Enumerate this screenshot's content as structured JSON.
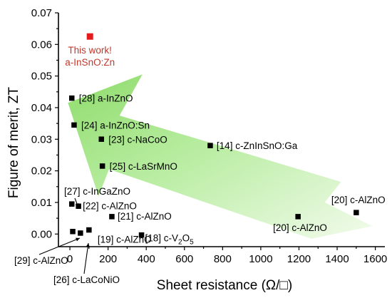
{
  "chart_data": {
    "type": "scatter",
    "xlabel": "Sheet resistance (Ω/□)",
    "ylabel": "Figure of merit, ZT",
    "xlim": [
      -60,
      1650
    ],
    "ylim": [
      -0.004,
      0.07
    ],
    "xticks": [
      0,
      200,
      400,
      600,
      800,
      1000,
      1200,
      1400,
      1600
    ],
    "xtick_labels": [
      "0",
      "200",
      "400",
      "600",
      "800",
      "1000",
      "1200",
      "1400",
      "1600"
    ],
    "yticks": [
      0.0,
      0.01,
      0.02,
      0.03,
      0.04,
      0.05,
      0.06,
      0.07
    ],
    "ytick_labels": [
      "0.00",
      "0.01",
      "0.02",
      "0.03",
      "0.04",
      "0.05",
      "0.06",
      "0.07"
    ],
    "grid": false,
    "highlight_color": "#e41a1c",
    "point_color": "#000000",
    "arrow_color": "#a8e58c",
    "annotation": "This work!\na-InSnO:Zn",
    "points": [
      {
        "x": 105,
        "y": 0.0625,
        "label": "This work!\na-InSnO:Zn",
        "highlight": true
      },
      {
        "x": 10,
        "y": 0.043,
        "label": "[28] a-InZnO"
      },
      {
        "x": 22,
        "y": 0.0345,
        "label": "[24] a-InZnO:Sn"
      },
      {
        "x": 165,
        "y": 0.03,
        "label": "[23] c-NaCoO"
      },
      {
        "x": 735,
        "y": 0.028,
        "label": "[14] c-ZnInSnO:Ga"
      },
      {
        "x": 170,
        "y": 0.0215,
        "label": "[25] c-LaSrMnO"
      },
      {
        "x": 10,
        "y": 0.0095,
        "label": "[27] c-InGaZnO"
      },
      {
        "x": 45,
        "y": 0.0088,
        "label": "[22] c-AlZnO"
      },
      {
        "x": 220,
        "y": 0.0055,
        "label": "[21] c-AlZnO"
      },
      {
        "x": 1500,
        "y": 0.0068,
        "label": "[20] c-AlZnO"
      },
      {
        "x": 1195,
        "y": 0.0055,
        "label": "[20] c-AlZnO"
      },
      {
        "x": 15,
        "y": 0.0008,
        "label": "[29] c-AlZnO"
      },
      {
        "x": 55,
        "y": 0.0003,
        "label": "[26] c-LaCoNiO"
      },
      {
        "x": 100,
        "y": 0.0013,
        "label": "[19] c-AlZnO"
      },
      {
        "x": 375,
        "y": -0.0003,
        "label": "[18] c-V2O5"
      }
    ]
  }
}
